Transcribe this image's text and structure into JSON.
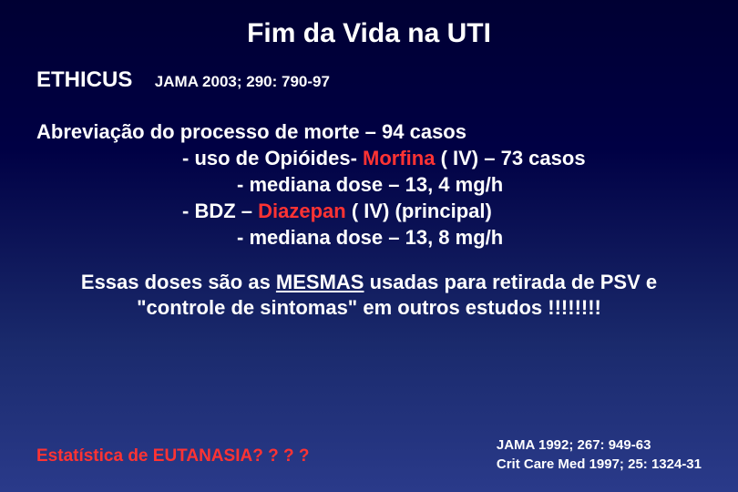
{
  "title": {
    "text": "Fim da Vida na UTI",
    "fontsize": 30,
    "color": "#ffffff"
  },
  "header": {
    "study_name": "ETHICUS",
    "study_fontsize": 24,
    "citation": "JAMA 2003; 290: 790-97",
    "citation_fontsize": 17
  },
  "body": {
    "fontsize": 22,
    "line1_a": "Abreviação do processo de morte – 94 casos",
    "line2_a": "- uso de Opióides- ",
    "line2_highlight": "Morfina",
    "line2_b": " ( IV) – 73 casos",
    "line3": "- mediana dose – 13, 4 mg/h",
    "line4_a": "- BDZ – ",
    "line4_highlight": "Diazepan",
    "line4_b": " ( IV) (principal)",
    "line5": "- mediana dose – 13, 8 mg/h"
  },
  "conclusion": {
    "fontsize": 22,
    "part1": "Essas doses são as ",
    "part2_underline": "MESMAS",
    "part3": " usadas para retirada de PSV e \"controle de sintomas\" em outros estudos !!!!!!!!"
  },
  "euthanasia": {
    "text": "Estatística de EUTANASIA? ? ? ?",
    "fontsize": 19,
    "color": "#ff3333"
  },
  "footer_citations": {
    "fontsize": 15,
    "cite1": "JAMA 1992; 267: 949-63",
    "cite2": "Crit Care Med 1997; 25: 1324-31"
  },
  "colors": {
    "background_top": "#000033",
    "background_bottom": "#2a3a8a",
    "text": "#ffffff",
    "highlight": "#ff3333"
  }
}
